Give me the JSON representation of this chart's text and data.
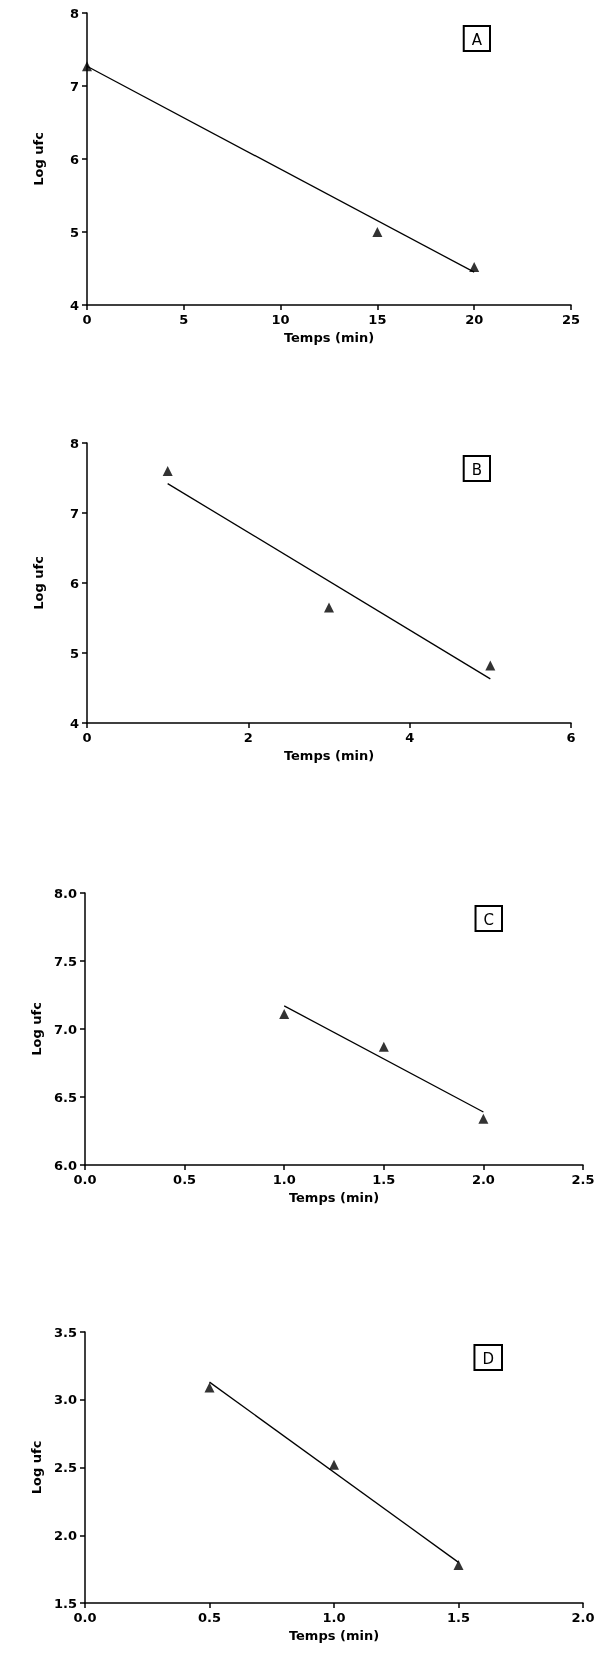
{
  "chart_data": [
    {
      "type": "scatter",
      "xlabel": "Temps (min)",
      "ylabel": "Log ufc",
      "annotations": [
        "A"
      ],
      "marker": "triangle",
      "grid": false,
      "xlim": [
        0,
        25
      ],
      "xticks": [
        0,
        5,
        10,
        15,
        20,
        25
      ],
      "ylim": [
        4,
        8
      ],
      "yticks": [
        4,
        5,
        6,
        7,
        8
      ],
      "series": [
        {
          "type": "scatter",
          "color": "#000000",
          "x": [
            0,
            15,
            20
          ],
          "values": [
            7.27,
            5.0,
            4.52
          ]
        },
        {
          "type": "line",
          "color": "#000000",
          "marker": "none",
          "x": [
            0,
            20
          ],
          "values": [
            7.27,
            4.45
          ]
        }
      ]
    },
    {
      "type": "scatter",
      "xlabel": "Temps (min)",
      "ylabel": "Log ufc",
      "annotations": [
        "B"
      ],
      "marker": "triangle",
      "grid": false,
      "xlim": [
        0,
        6
      ],
      "xticks": [
        0,
        2,
        4,
        6
      ],
      "ylim": [
        4,
        8
      ],
      "yticks": [
        4,
        5,
        6,
        7,
        8
      ],
      "series": [
        {
          "type": "scatter",
          "color": "#000000",
          "x": [
            1,
            3,
            5
          ],
          "values": [
            7.6,
            5.65,
            4.82
          ]
        },
        {
          "type": "line",
          "color": "#000000",
          "marker": "none",
          "x": [
            1,
            5
          ],
          "values": [
            7.42,
            4.63
          ]
        }
      ]
    },
    {
      "type": "scatter",
      "xlabel": "Temps (min)",
      "ylabel": "Log ufc",
      "annotations": [
        "C"
      ],
      "marker": "triangle",
      "grid": false,
      "xlim": [
        0,
        2.5
      ],
      "xticks": [
        {
          "value": 0,
          "label": "0.0"
        },
        0.5,
        {
          "value": 1,
          "label": "1.0"
        },
        1.5,
        {
          "value": 2,
          "label": "2.0"
        },
        2.5
      ],
      "ylim": [
        6,
        8
      ],
      "yticks": [
        {
          "value": 6,
          "label": "6.0"
        },
        6.5,
        {
          "value": 7,
          "label": "7.0"
        },
        7.5,
        {
          "value": 8,
          "label": "8.0"
        }
      ],
      "series": [
        {
          "type": "scatter",
          "color": "#000000",
          "x": [
            1,
            1.5,
            2
          ],
          "values": [
            7.11,
            6.87,
            6.34
          ]
        },
        {
          "type": "line",
          "color": "#000000",
          "marker": "none",
          "x": [
            1,
            2
          ],
          "values": [
            7.17,
            6.39
          ]
        }
      ]
    },
    {
      "type": "scatter",
      "xlabel": "Temps (min)",
      "ylabel": "Log ufc",
      "annotations": [
        "D"
      ],
      "marker": "triangle",
      "grid": false,
      "xlim": [
        0,
        2
      ],
      "xticks": [
        {
          "value": 0,
          "label": "0.0"
        },
        0.5,
        {
          "value": 1,
          "label": "1.0"
        },
        1.5,
        {
          "value": 2,
          "label": "2.0"
        }
      ],
      "ylim": [
        1.5,
        3.5
      ],
      "yticks": [
        1.5,
        {
          "value": 2,
          "label": "2.0"
        },
        2.5,
        {
          "value": 3,
          "label": "3.0"
        },
        3.5
      ],
      "series": [
        {
          "type": "scatter",
          "color": "#000000",
          "x": [
            0.5,
            1,
            1.5
          ],
          "values": [
            3.09,
            2.52,
            1.78
          ]
        },
        {
          "type": "line",
          "color": "#000000",
          "marker": "none",
          "x": [
            0.5,
            1.5
          ],
          "values": [
            3.13,
            1.8
          ]
        }
      ]
    }
  ]
}
